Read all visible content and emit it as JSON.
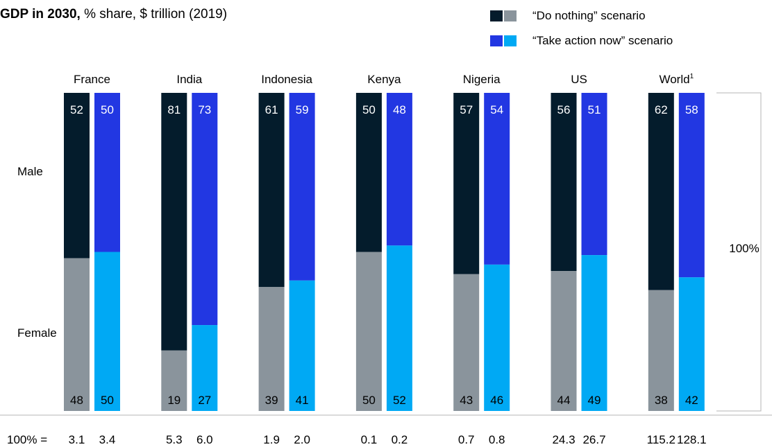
{
  "title": {
    "bold": "GDP in 2030,",
    "rest": " % share, $ trillion (2019)"
  },
  "legend": [
    {
      "label": "“Do nothing” scenario",
      "colors": [
        "#041c2c",
        "#8a949c"
      ]
    },
    {
      "label": "“Take action now” scenario",
      "colors": [
        "#2237e2",
        "#00a9f4"
      ]
    }
  ],
  "row_labels": {
    "male": "Male",
    "female": "Female"
  },
  "bracket_label": "100%",
  "totals_prefix": "100% =",
  "colors": {
    "do_nothing_male": "#041c2c",
    "do_nothing_female": "#8a949c",
    "take_action_male": "#2237e2",
    "take_action_female": "#00a9f4"
  },
  "chart_data": {
    "type": "bar",
    "stacked": true,
    "categories": [
      "France",
      "India",
      "Indonesia",
      "Kenya",
      "Nigeria",
      "US",
      "World"
    ],
    "category_superscripts": [
      "",
      "",
      "",
      "",
      "",
      "",
      "1"
    ],
    "series": [
      {
        "name": "“Do nothing” scenario",
        "male": [
          52,
          81,
          61,
          50,
          57,
          56,
          62
        ],
        "female": [
          48,
          19,
          39,
          50,
          43,
          44,
          38
        ],
        "total_100pct": [
          "3.1",
          "5.3",
          "1.9",
          "0.1",
          "0.7",
          "24.3",
          "115.2"
        ]
      },
      {
        "name": "“Take action now” scenario",
        "male": [
          50,
          73,
          59,
          48,
          54,
          51,
          58
        ],
        "female": [
          50,
          27,
          41,
          52,
          46,
          49,
          42
        ],
        "total_100pct": [
          "3.4",
          "6.0",
          "2.0",
          "0.2",
          "0.8",
          "26.7",
          "128.1"
        ]
      }
    ],
    "ylim": [
      0,
      100
    ]
  }
}
